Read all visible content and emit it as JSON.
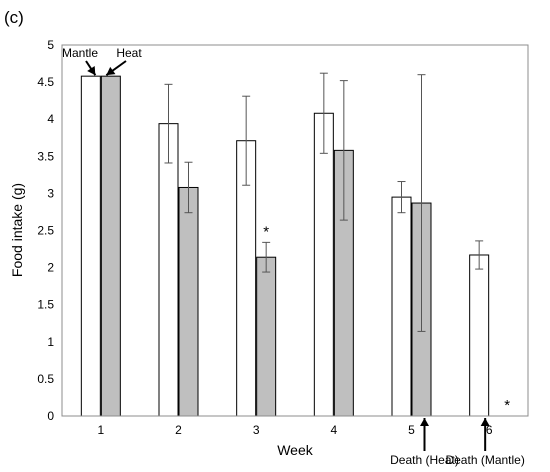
{
  "panel_label": "(c)",
  "chart_data": {
    "type": "bar",
    "title": "",
    "xlabel": "Week",
    "ylabel": "Food intake (g)",
    "ylim": [
      0,
      5
    ],
    "y_ticks": [
      "0",
      "0.5",
      "1",
      "1.5",
      "2",
      "2.5",
      "3",
      "3.5",
      "4",
      "4.5",
      "5"
    ],
    "categories": [
      "1",
      "2",
      "3",
      "4",
      "5",
      "6"
    ],
    "grid": false,
    "series": [
      {
        "name": "Mantle",
        "color": "#ffffff",
        "values": [
          4.58,
          3.94,
          3.71,
          4.08,
          2.95,
          2.17
        ],
        "errors": [
          null,
          0.53,
          0.6,
          0.54,
          0.21,
          0.19
        ]
      },
      {
        "name": "Heat",
        "color": "#bfbfbf",
        "values": [
          4.58,
          3.08,
          2.14,
          3.58,
          2.87,
          null
        ],
        "errors": [
          null,
          0.34,
          0.2,
          0.94,
          1.73,
          null
        ]
      }
    ],
    "annotations": [
      {
        "text": "*",
        "category": "3",
        "series": "Heat"
      },
      {
        "text": "*",
        "category": "6",
        "series": "Heat"
      },
      {
        "text": "Death (Heat)",
        "category": "5",
        "series": "Heat"
      },
      {
        "text": "Death (Mantle)",
        "category": "6",
        "series": "Mantle"
      }
    ]
  }
}
